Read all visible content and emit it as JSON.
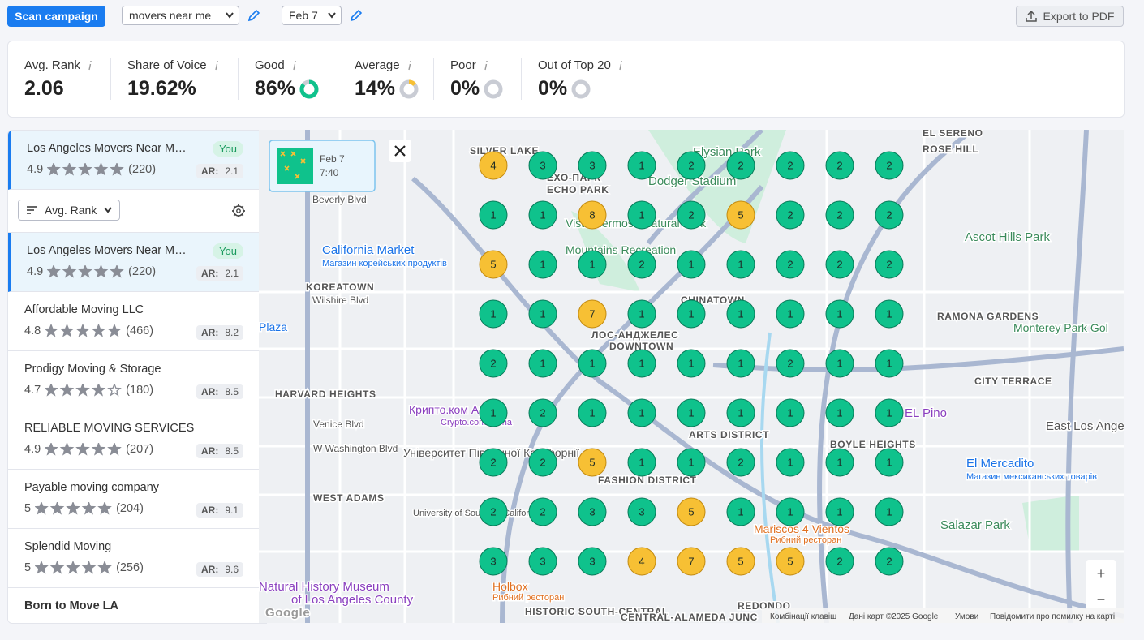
{
  "toolbar": {
    "scan": "Scan campaign",
    "keyword": "movers near me",
    "date": "Feb 7",
    "export": "Export to PDF"
  },
  "metrics": [
    {
      "label": "Avg. Rank",
      "value": 2.06
    },
    {
      "label": "Share of Voice",
      "value": 19.62,
      "value_label": "19.62%"
    },
    {
      "label": "Good",
      "value": 86,
      "value_label": "86%"
    },
    {
      "label": "Average",
      "value": 14,
      "value_label": "14%"
    },
    {
      "label": "Poor",
      "value": 0,
      "value_label": "0%"
    },
    {
      "label": "Out of Top 20",
      "value": 0,
      "value_label": "0%"
    }
  ],
  "pinned": {
    "name": "Los Angeles Movers Near M…",
    "badge": "You",
    "rating": 4.9,
    "reviews": "(220)",
    "ar_label": "AR:",
    "ar": 2.1
  },
  "sort": "Avg. Rank",
  "listings": [
    {
      "name": "Los Angeles Movers Near M…",
      "badge": "You",
      "rating": 4.9,
      "reviews": "(220)",
      "ar_label": "AR:",
      "ar": 2.1
    },
    {
      "name": "Affordable Moving LLC",
      "rating": 4.8,
      "reviews": "(466)",
      "ar_label": "AR:",
      "ar": 8.2
    },
    {
      "name": "Prodigy Moving & Storage",
      "rating": 4.7,
      "reviews": "(180)",
      "ar_label": "AR:",
      "ar": 8.5
    },
    {
      "name": "RELIABLE MOVING SERVICES",
      "rating": 4.9,
      "reviews": "(207)",
      "ar_label": "AR:",
      "ar": 8.5
    },
    {
      "name": "Payable moving company",
      "rating": 5.0,
      "reviews": "(204)",
      "ar_label": "AR:",
      "ar": 9.1
    },
    {
      "name": "Splendid Moving",
      "rating": 5.0,
      "reviews": "(256)",
      "ar_label": "AR:",
      "ar": 9.6
    },
    {
      "name": "Born to Move LA"
    }
  ],
  "map": {
    "thumb_date": "Feb 7",
    "thumb_time": "7:40",
    "grid": [
      [
        4,
        3,
        3,
        1,
        2,
        2,
        2,
        2,
        2
      ],
      [
        1,
        1,
        8,
        1,
        2,
        5,
        2,
        2,
        2
      ],
      [
        5,
        1,
        1,
        2,
        1,
        1,
        2,
        2,
        2
      ],
      [
        1,
        1,
        7,
        1,
        1,
        1,
        1,
        1,
        1
      ],
      [
        2,
        1,
        1,
        1,
        1,
        1,
        2,
        1,
        1
      ],
      [
        1,
        2,
        1,
        1,
        1,
        1,
        1,
        1,
        1
      ],
      [
        2,
        2,
        5,
        1,
        1,
        2,
        1,
        1,
        1
      ],
      [
        2,
        2,
        3,
        3,
        5,
        1,
        1,
        1,
        1
      ],
      [
        3,
        3,
        3,
        4,
        7,
        5,
        5,
        2,
        2
      ]
    ],
    "labels": [
      "SILVER LAKE",
      "ЕХО-ПАРК",
      "ECHO PARK",
      "Elysian Park",
      "Dodger Stadium",
      "ROSE HILL",
      "EL SERENO",
      "California Market",
      "Магазин корейських продуктів",
      "KOREATOWN",
      "Wilshire Blvd",
      "Beverly Blvd",
      "CHINATOWN",
      "ЛОС-АНДЖЕЛЕС",
      "DOWNTOWN",
      "HARVARD HEIGHTS",
      "ARTS DISTRICT",
      "BOYLE HEIGHTS",
      "FASHION DISTRICT",
      "WEST ADAMS",
      "Університет Південної Каліфорнії",
      "University of Southern California",
      "Natural History Museum",
      "of Los Angeles County",
      "Holbox",
      "Рибний ресторан",
      "HISTORIC SOUTH-CENTRAL",
      "Mariscos 4 Vientos",
      "Рибний ресторан",
      "Salazar Park",
      "El Mercadito",
      "Магазин мексиканських товарів",
      "CITY TERRACE",
      "East Los Angel",
      "EL Pino",
      "Monterey Park Gol",
      "RAMONA GARDENS",
      "Ascot Hills Park",
      "Venice Blvd",
      "W Washington Blvd",
      "Plaza",
      "Крипто.ком Арена",
      "Crypto.com Arena",
      "Vista Hermosa Natural Park",
      "Mountains Recreation",
      "REDONDO",
      "CENTRAL-ALAMEDA JUNC",
      "Google"
    ],
    "footer": [
      "Комбінації клавіш",
      "Дані карт ©2025 Google",
      "Умови",
      "Повідомити про помилку на карті"
    ],
    "zoom_in": "+",
    "zoom_out": "−"
  }
}
